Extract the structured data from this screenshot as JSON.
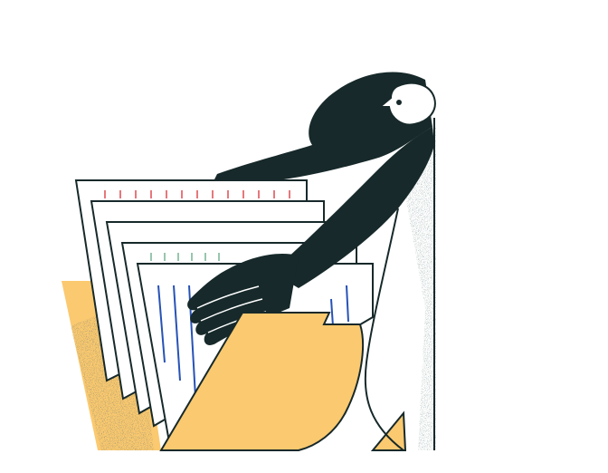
{
  "illustration": {
    "subject": "woman-filing-documents",
    "colors": {
      "background": "#ffffff",
      "ink": "#17292a",
      "folder": "#fbc96f",
      "paper": "#ffffff",
      "tick_red": "#e0565b",
      "tick_green": "#7fb79a",
      "line_blue": "#2752b6"
    },
    "icons": [
      "woman-figure",
      "folder",
      "documents",
      "hand"
    ]
  }
}
